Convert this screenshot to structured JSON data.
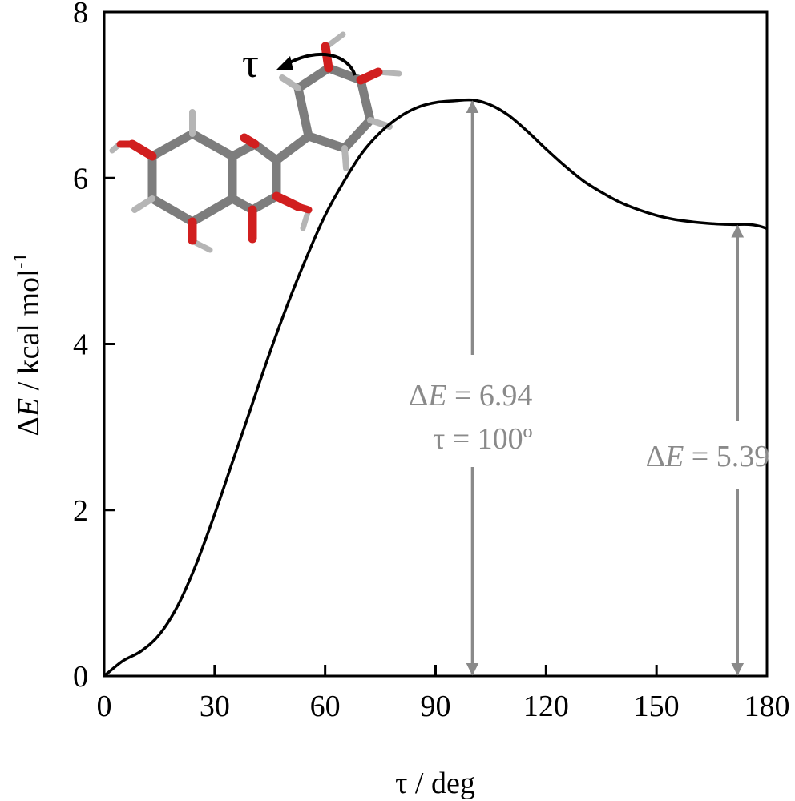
{
  "chart_data": {
    "type": "line",
    "title": "",
    "xlabel": "τ / deg",
    "ylabel_parts": {
      "delta": "Δ",
      "e": "E",
      "rest": " / kcal mol",
      "sup": "-1"
    },
    "xlim": [
      0,
      180
    ],
    "ylim": [
      0,
      8
    ],
    "xticks": [
      0,
      30,
      60,
      90,
      120,
      150,
      180
    ],
    "yticks": [
      0,
      2,
      4,
      6,
      8
    ],
    "grid": false,
    "series": [
      {
        "x": [
          0,
          5,
          10,
          15,
          20,
          25,
          30,
          35,
          40,
          45,
          50,
          55,
          60,
          65,
          70,
          75,
          80,
          85,
          90,
          95,
          100,
          105,
          110,
          115,
          120,
          125,
          130,
          135,
          140,
          145,
          150,
          155,
          160,
          165,
          170,
          175,
          178,
          180
        ],
        "y": [
          0.0,
          0.18,
          0.3,
          0.5,
          0.85,
          1.35,
          1.95,
          2.6,
          3.25,
          3.9,
          4.5,
          5.05,
          5.55,
          5.95,
          6.3,
          6.55,
          6.73,
          6.85,
          6.91,
          6.93,
          6.94,
          6.88,
          6.75,
          6.56,
          6.35,
          6.15,
          5.97,
          5.83,
          5.71,
          5.62,
          5.55,
          5.5,
          5.47,
          5.45,
          5.44,
          5.44,
          5.42,
          5.39
        ]
      }
    ],
    "annotations": [
      {
        "id": "max",
        "x": 100,
        "y_top": 6.94,
        "line1_prefix": "Δ",
        "line1_var": "E",
        "line1_suffix": " = 6.94",
        "line2": "τ = 100º"
      },
      {
        "id": "end",
        "x": 172,
        "y_top": 5.44,
        "line1_prefix": "Δ",
        "line1_var": "E",
        "line1_suffix": " = 5.39"
      }
    ],
    "inset": {
      "tau_symbol": "τ",
      "description_icon": "flavonol-molecule-icon"
    },
    "colors": {
      "curve": "#000000",
      "annotation": "#8a8a8a",
      "oxygen": "#d11f1f",
      "carbon": "#7d7d7d",
      "hydrogen": "#b5b5b5"
    }
  }
}
